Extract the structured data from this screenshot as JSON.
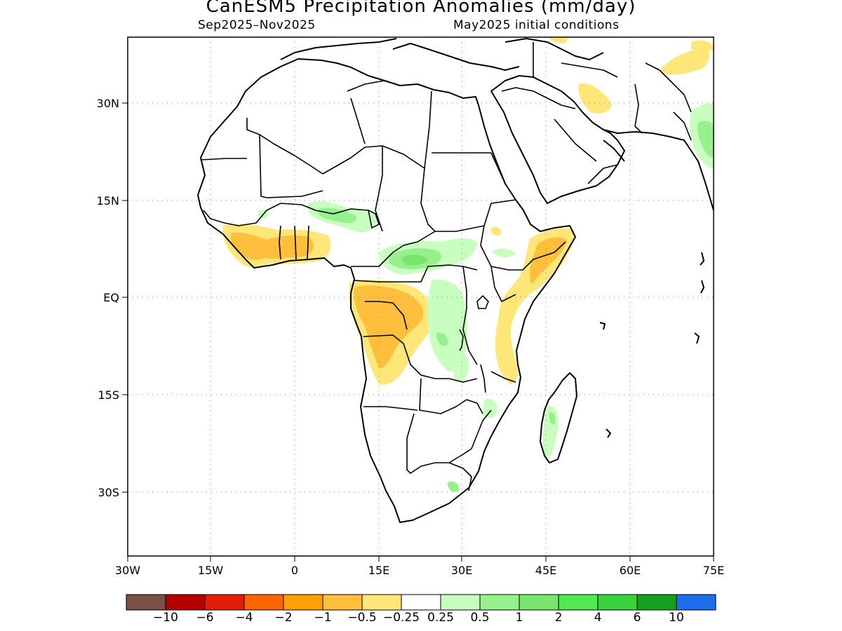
{
  "title": "CanESM5 Precipitation Anomalies (mm/day)",
  "subtitle_left": "Sep2025–Nov2025",
  "subtitle_right": "May2025 initial conditions",
  "lon_ticks": [
    "30W",
    "15W",
    "0",
    "15E",
    "30E",
    "45E",
    "60E",
    "75E"
  ],
  "lat_ticks": [
    "30N",
    "15N",
    "EQ",
    "15S",
    "30S"
  ],
  "colorbar": {
    "colors": [
      "#7a5146",
      "#b40000",
      "#e01e0a",
      "#ff6400",
      "#ffa000",
      "#ffbe3c",
      "#ffe678",
      "#ffffff",
      "#c8ffbe",
      "#96f08c",
      "#78e66e",
      "#50ea50",
      "#37d23c",
      "#14a01e",
      "#1e6eeb"
    ],
    "labels": [
      "−10",
      "−6",
      "−4",
      "−2",
      "−1",
      "−0.5",
      "−0.25",
      "0.25",
      "0.5",
      "1",
      "2",
      "4",
      "6",
      "10"
    ]
  }
}
